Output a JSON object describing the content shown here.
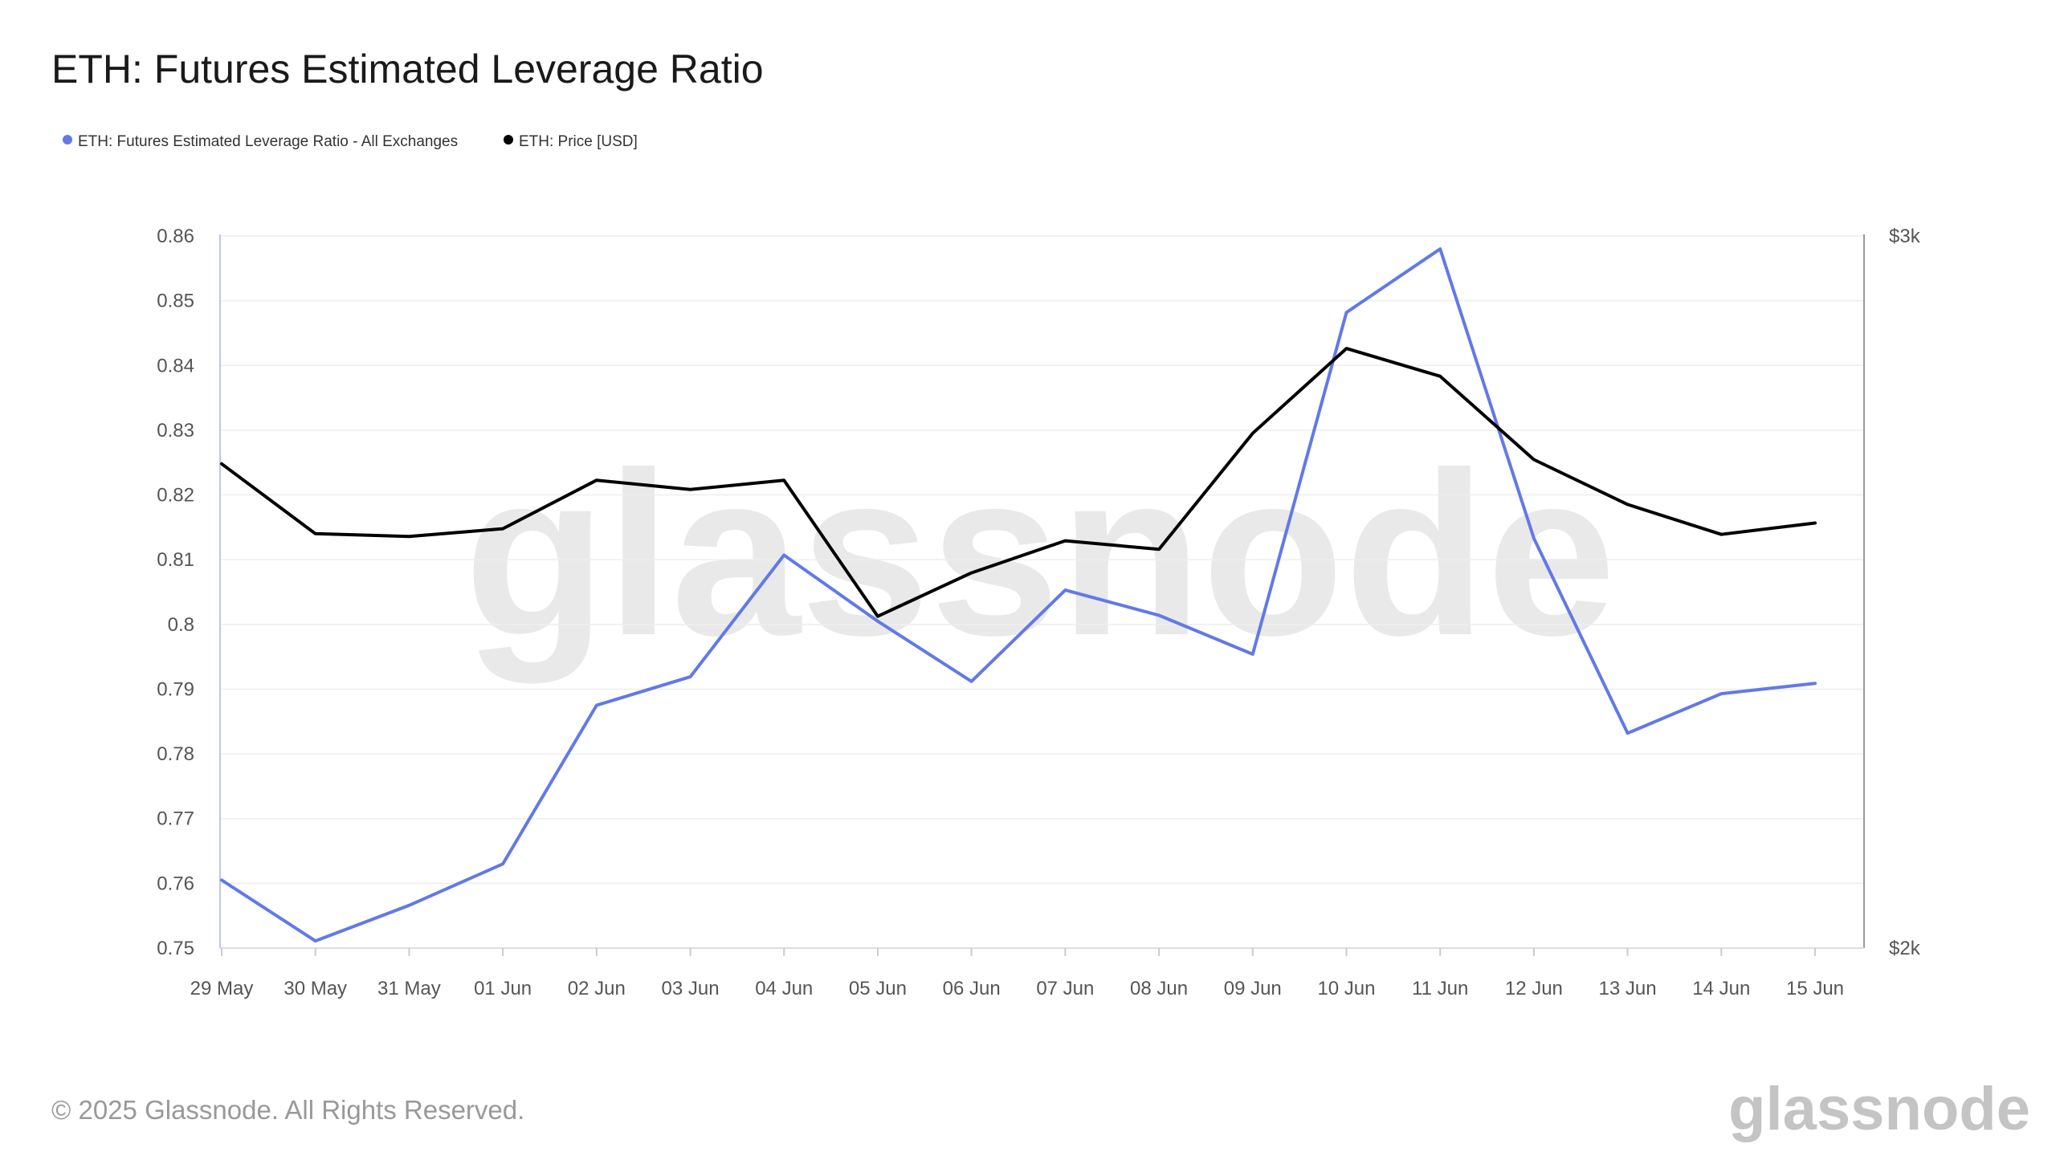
{
  "chart_data": {
    "type": "line",
    "title": "ETH: Futures Estimated Leverage Ratio",
    "categories": [
      "29 May",
      "30 May",
      "31 May",
      "01 Jun",
      "02 Jun",
      "03 Jun",
      "04 Jun",
      "05 Jun",
      "06 Jun",
      "07 Jun",
      "08 Jun",
      "09 Jun",
      "10 Jun",
      "11 Jun",
      "12 Jun",
      "13 Jun",
      "14 Jun",
      "15 Jun"
    ],
    "y_left": {
      "ylim": [
        0.75,
        0.86
      ],
      "ticks": [
        "0.86",
        "0.85",
        "0.84",
        "0.83",
        "0.82",
        "0.81",
        "0.8",
        "0.79",
        "0.78",
        "0.77",
        "0.76",
        "0.75"
      ]
    },
    "y_right": {
      "ylim": [
        2000,
        3000
      ],
      "ticks": [
        "$3k",
        "$2k"
      ],
      "tick_values": [
        3000,
        2000
      ]
    },
    "series": [
      {
        "name": "ETH: Futures Estimated Leverage Ratio - All Exchanges",
        "axis": "left",
        "color": "#6279e6",
        "values": [
          0.7605,
          0.7511,
          0.7566,
          0.763,
          0.7875,
          0.7919,
          0.8107,
          0.8005,
          0.7912,
          0.8053,
          0.8014,
          0.7954,
          0.8482,
          0.858,
          0.8133,
          0.7832,
          0.7893,
          0.7909
        ]
      },
      {
        "name": "ETH: Price [USD]",
        "axis": "right",
        "color": "#000000",
        "values": [
          2680,
          2582,
          2578,
          2589,
          2657,
          2644,
          2657,
          2466,
          2527,
          2572,
          2560,
          2723,
          2842,
          2803,
          2686,
          2623,
          2581,
          2597
        ]
      }
    ],
    "grid": true,
    "legend_position": "top-left"
  },
  "footer": {
    "copyright": "© 2025 Glassnode. All Rights Reserved.",
    "logo_text": "glassnode"
  },
  "watermark": "glassnode"
}
